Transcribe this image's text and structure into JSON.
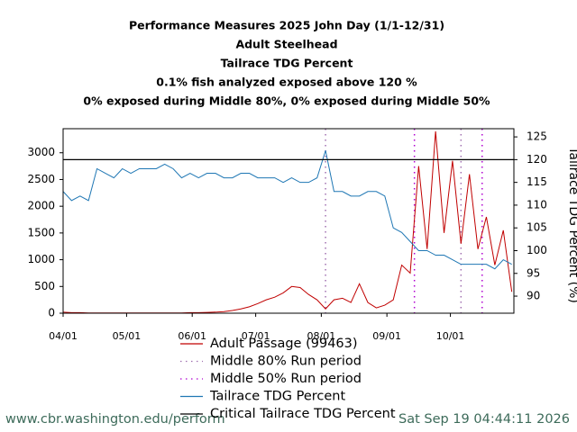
{
  "chart_data": {
    "type": "line",
    "title": "Performance Measures 2025 John Day (1/1-12/31)",
    "subtitles": [
      "Adult Steelhead",
      "Tailrace TDG Percent",
      "0.1% fish analyzed exposed above 120 %",
      "0% exposed during Middle 80%, 0% exposed during Middle 50%"
    ],
    "y2_label": "Tailrace TDG Percent (%)",
    "x": [
      0,
      4,
      8,
      12,
      16,
      20,
      24,
      28,
      32,
      36,
      40,
      44,
      48,
      52,
      56,
      60,
      64,
      68,
      72,
      76,
      80,
      84,
      88,
      92,
      96,
      100,
      104,
      108,
      112,
      116,
      120,
      124,
      128,
      132,
      136,
      140,
      144,
      148,
      152,
      156,
      160,
      164,
      168,
      172,
      176,
      180,
      184,
      188,
      192,
      196,
      200,
      204,
      208,
      212
    ],
    "series": [
      {
        "name": "Adult Passage (99463)",
        "color": "#c00000",
        "values": [
          20,
          10,
          10,
          5,
          5,
          5,
          5,
          5,
          5,
          5,
          5,
          5,
          5,
          5,
          5,
          10,
          10,
          15,
          20,
          30,
          50,
          80,
          120,
          180,
          250,
          300,
          380,
          500,
          480,
          350,
          250,
          80,
          250,
          280,
          200,
          550,
          200,
          100,
          150,
          250,
          900,
          750,
          2750,
          1200,
          3400,
          1500,
          2850,
          1300,
          2600,
          1200,
          1800,
          900,
          1550,
          400
        ]
      },
      {
        "name": "Tailrace TDG Percent",
        "color": "#1f77b4",
        "axis": "y2",
        "values": [
          113,
          111,
          112,
          111,
          118,
          117,
          116,
          118,
          117,
          118,
          118,
          118,
          119,
          118,
          116,
          117,
          116,
          117,
          117,
          116,
          116,
          117,
          117,
          116,
          116,
          116,
          115,
          116,
          115,
          115,
          116,
          122,
          113,
          113,
          112,
          112,
          113,
          113,
          112,
          105,
          104,
          102,
          100,
          100,
          99,
          99,
          98,
          97,
          97,
          97,
          97,
          96,
          98,
          97
        ]
      }
    ],
    "periods": [
      {
        "name": "Middle 80% Run period",
        "color": "#a070b0",
        "x": [
          124,
          188
        ]
      },
      {
        "name": "Middle 50% Run period",
        "color": "#b000d0",
        "x": [
          166,
          198
        ]
      }
    ],
    "threshold": {
      "name": "Critical Tailrace TDG Percent",
      "color": "#000000",
      "value": 120,
      "axis": "y2"
    },
    "xlim": [
      0,
      213
    ],
    "xticks": [
      {
        "value": 0,
        "label": "04/01"
      },
      {
        "value": 30,
        "label": "05/01"
      },
      {
        "value": 61,
        "label": "06/01"
      },
      {
        "value": 91,
        "label": "07/01"
      },
      {
        "value": 122,
        "label": "08/01"
      },
      {
        "value": 153,
        "label": "09/01"
      },
      {
        "value": 183,
        "label": "10/01"
      }
    ],
    "ylim": [
      0,
      3450
    ],
    "yticks": [
      0,
      500,
      1000,
      1500,
      2000,
      2500,
      3000
    ],
    "y2lim": [
      86.25,
      126.8
    ],
    "y2ticks": [
      90,
      95,
      100,
      105,
      110,
      115,
      120,
      125
    ]
  },
  "footer": {
    "url": "www.cbr.washington.edu/perform",
    "timestamp": "Sat Sep 19 04:44:11 2026"
  }
}
